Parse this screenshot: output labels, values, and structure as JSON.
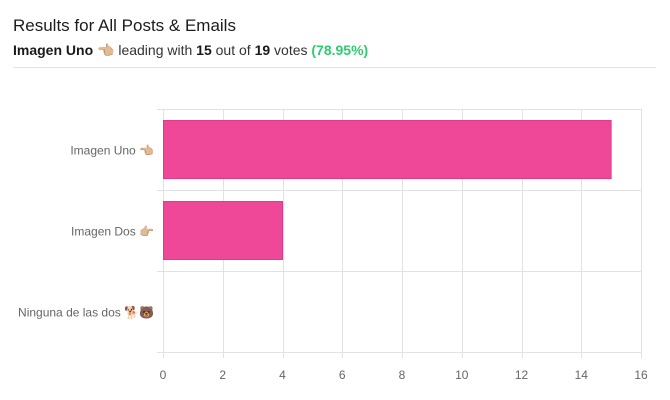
{
  "header": {
    "title": "Results for All Posts & Emails",
    "leader_name": "Imagen Uno 👈🏼",
    "leading_with_text": " leading with ",
    "leader_votes": "15",
    "out_of_text": " out of ",
    "total_votes": "19",
    "votes_text": " votes ",
    "percentage": "(78.95%)"
  },
  "colors": {
    "bar": "#ef4899",
    "bar_border": "#e03a8a",
    "percentage": "#2ecc71",
    "grid": "#e2e2e2",
    "tick_text": "#666666"
  },
  "chart_data": {
    "type": "bar",
    "orientation": "horizontal",
    "categories": [
      "Imagen Uno 👈🏼",
      "Imagen Dos 👉🏼",
      "Ninguna de las dos 🐕🐻"
    ],
    "values": [
      15,
      4,
      0
    ],
    "xlim": [
      0,
      16
    ],
    "xticks": [
      0,
      2,
      4,
      6,
      8,
      10,
      12,
      14,
      16
    ],
    "grid": true,
    "title": "",
    "xlabel": "",
    "ylabel": ""
  }
}
